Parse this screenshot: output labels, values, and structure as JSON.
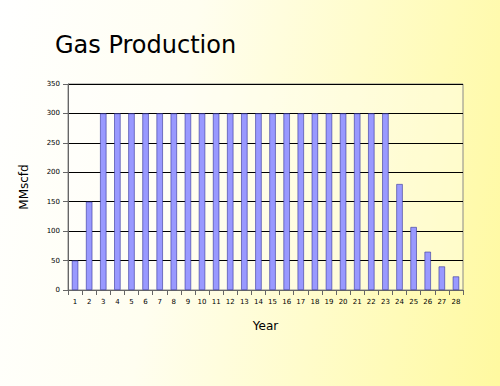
{
  "chart_data": {
    "type": "bar",
    "title": "Gas Production",
    "x_label": "Year",
    "y_label": "MMscfd",
    "categories": [
      1,
      2,
      3,
      4,
      5,
      6,
      7,
      8,
      9,
      10,
      11,
      12,
      13,
      14,
      15,
      16,
      17,
      18,
      19,
      20,
      21,
      22,
      23,
      24,
      25,
      26,
      27,
      28
    ],
    "values": [
      50,
      150,
      300,
      300,
      300,
      300,
      300,
      300,
      300,
      300,
      300,
      300,
      300,
      300,
      300,
      300,
      300,
      300,
      300,
      300,
      300,
      300,
      300,
      180,
      107,
      65,
      40,
      23
    ],
    "color": "#9999ff",
    "ylim": [
      0,
      350
    ],
    "yticks": [
      0,
      50,
      100,
      150,
      200,
      250,
      300,
      350
    ],
    "grid": true
  }
}
